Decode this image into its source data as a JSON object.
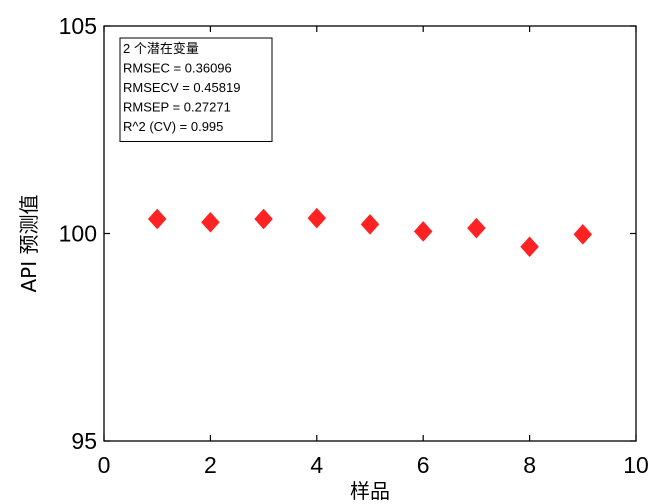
{
  "chart_data": {
    "type": "scatter",
    "title": "",
    "xlabel": "样品",
    "ylabel": "API 预测值",
    "xlim": [
      0,
      10
    ],
    "ylim": [
      95,
      105
    ],
    "xticks": [
      0,
      2,
      4,
      6,
      8,
      10
    ],
    "yticks": [
      95,
      100,
      105
    ],
    "xtick_labels": [
      "0",
      "2",
      "4",
      "6",
      "8",
      "10"
    ],
    "ytick_labels": [
      "95",
      "100",
      "105"
    ],
    "grid": false,
    "legend_placement": "top-left",
    "legend_lines": [
      "2 个潜在变量",
      "RMSEC = 0.36096",
      "RMSECV = 0.45819",
      "RMSEP = 0.27271",
      "R^2 (CV) = 0.995"
    ],
    "marker": "diamond",
    "marker_color": "#ff2222",
    "series": [
      {
        "x": [
          1,
          2,
          3,
          4,
          5,
          6,
          7,
          8,
          9
        ],
        "y": [
          100.35,
          100.27,
          100.35,
          100.37,
          100.22,
          100.05,
          100.13,
          99.68,
          99.98
        ]
      }
    ]
  }
}
